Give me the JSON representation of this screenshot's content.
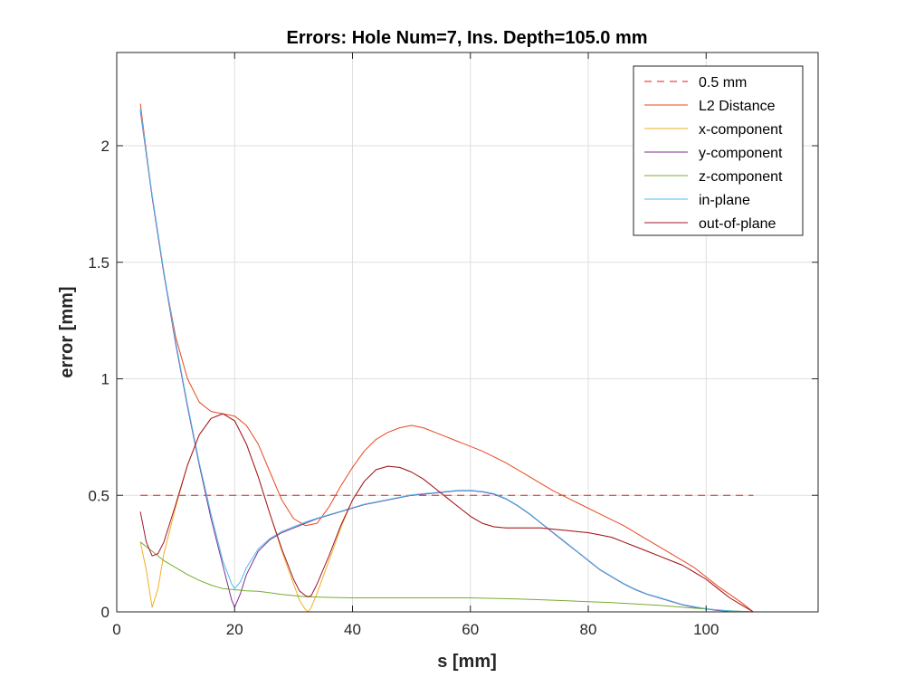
{
  "chart_data": {
    "type": "line",
    "title": "Errors: Hole Num=7, Ins. Depth=105.0 mm",
    "xlabel": "s [mm]",
    "ylabel": "error [mm]",
    "xlim": [
      0,
      119
    ],
    "ylim": [
      0,
      2.4
    ],
    "xticks": [
      0,
      20,
      40,
      60,
      80,
      100
    ],
    "yticks": [
      0,
      0.5,
      1,
      1.5,
      2
    ],
    "xtick_labels": [
      "0",
      "20",
      "40",
      "60",
      "80",
      "100"
    ],
    "ytick_labels": [
      "0",
      "0.5",
      "1",
      "1.5",
      "2"
    ],
    "grid": true,
    "legend_position": "top-right",
    "series": [
      {
        "name": "0.5 mm",
        "color": "#e41a1c",
        "dash": true,
        "x": [
          4,
          108
        ],
        "y": [
          0.5,
          0.5
        ]
      },
      {
        "name": "L2 Distance",
        "color": "#e8471f",
        "x": [
          4,
          6,
          8,
          10,
          12,
          14,
          16,
          18,
          20,
          22,
          24,
          26,
          28,
          30,
          32,
          34,
          36,
          38,
          40,
          42,
          44,
          46,
          48,
          50,
          52,
          54,
          58,
          62,
          66,
          70,
          74,
          78,
          82,
          86,
          90,
          94,
          98,
          102,
          106,
          108
        ],
        "y": [
          2.18,
          1.78,
          1.45,
          1.18,
          1.0,
          0.9,
          0.86,
          0.85,
          0.84,
          0.8,
          0.72,
          0.6,
          0.48,
          0.4,
          0.37,
          0.38,
          0.45,
          0.54,
          0.62,
          0.69,
          0.74,
          0.77,
          0.79,
          0.8,
          0.79,
          0.77,
          0.73,
          0.69,
          0.64,
          0.58,
          0.52,
          0.47,
          0.42,
          0.37,
          0.31,
          0.25,
          0.19,
          0.11,
          0.04,
          0.0
        ]
      },
      {
        "name": "x-component",
        "color": "#edb120",
        "x": [
          4,
          5,
          6,
          7,
          8,
          10,
          12,
          14,
          16,
          18,
          20,
          22,
          24,
          26,
          28,
          30,
          31,
          32,
          32.5,
          33,
          34,
          36,
          38,
          40,
          42,
          44,
          46,
          48,
          50,
          52,
          54,
          56,
          58,
          60,
          62,
          64,
          66,
          68,
          70,
          72,
          74,
          76,
          78,
          80,
          82,
          84,
          86,
          88,
          90,
          92,
          94,
          96,
          98,
          100,
          102,
          104,
          106,
          108
        ],
        "y": [
          0.3,
          0.18,
          0.02,
          0.1,
          0.25,
          0.45,
          0.63,
          0.76,
          0.83,
          0.85,
          0.82,
          0.72,
          0.58,
          0.42,
          0.26,
          0.12,
          0.05,
          0.01,
          0.0,
          0.02,
          0.08,
          0.22,
          0.36,
          0.48,
          0.56,
          0.61,
          0.625,
          0.62,
          0.6,
          0.57,
          0.53,
          0.49,
          0.45,
          0.41,
          0.38,
          0.365,
          0.36,
          0.36,
          0.36,
          0.36,
          0.355,
          0.35,
          0.345,
          0.34,
          0.33,
          0.32,
          0.3,
          0.28,
          0.26,
          0.24,
          0.22,
          0.2,
          0.17,
          0.14,
          0.1,
          0.06,
          0.03,
          0.0
        ]
      },
      {
        "name": "y-component",
        "color": "#7e2f8e",
        "x": [
          4,
          6,
          8,
          10,
          12,
          14,
          16,
          18,
          19.5,
          20,
          21,
          22,
          24,
          26,
          28,
          30,
          32,
          34,
          36,
          38,
          40,
          42,
          44,
          46,
          48,
          50,
          52,
          54,
          56,
          58,
          60,
          62,
          64,
          66,
          68,
          70,
          72,
          74,
          76,
          78,
          80,
          82,
          84,
          86,
          88,
          90,
          92,
          94,
          96,
          98,
          100,
          102,
          104,
          106,
          108
        ],
        "y": [
          2.15,
          1.78,
          1.45,
          1.15,
          0.88,
          0.63,
          0.4,
          0.2,
          0.05,
          0.02,
          0.08,
          0.16,
          0.26,
          0.31,
          0.34,
          0.36,
          0.38,
          0.4,
          0.415,
          0.43,
          0.445,
          0.46,
          0.47,
          0.48,
          0.49,
          0.5,
          0.505,
          0.51,
          0.515,
          0.52,
          0.52,
          0.515,
          0.505,
          0.485,
          0.455,
          0.42,
          0.38,
          0.34,
          0.3,
          0.26,
          0.22,
          0.18,
          0.15,
          0.12,
          0.095,
          0.075,
          0.06,
          0.045,
          0.03,
          0.02,
          0.012,
          0.006,
          0.003,
          0.001,
          0.0
        ]
      },
      {
        "name": "z-component",
        "color": "#77ac30",
        "x": [
          4,
          6,
          8,
          10,
          12,
          14,
          16,
          18,
          20,
          22,
          24,
          26,
          28,
          30,
          32,
          36,
          40,
          44,
          48,
          52,
          56,
          60,
          64,
          68,
          72,
          76,
          80,
          84,
          88,
          92,
          96,
          100,
          104,
          108
        ],
        "y": [
          0.3,
          0.26,
          0.22,
          0.19,
          0.16,
          0.135,
          0.115,
          0.1,
          0.095,
          0.09,
          0.088,
          0.082,
          0.075,
          0.07,
          0.065,
          0.062,
          0.06,
          0.06,
          0.06,
          0.06,
          0.06,
          0.06,
          0.058,
          0.055,
          0.052,
          0.048,
          0.044,
          0.04,
          0.034,
          0.028,
          0.02,
          0.012,
          0.005,
          0.0
        ]
      },
      {
        "name": "in-plane",
        "color": "#4dbeee",
        "x": [
          4,
          6,
          8,
          10,
          12,
          14,
          16,
          18,
          19.5,
          20,
          21,
          22,
          24,
          26,
          28,
          30,
          32,
          34,
          36,
          38,
          40,
          42,
          44,
          46,
          48,
          50,
          52,
          54,
          56,
          58,
          60,
          62,
          64,
          66,
          68,
          70,
          72,
          74,
          76,
          78,
          80,
          82,
          84,
          86,
          88,
          90,
          92,
          94,
          96,
          98,
          100,
          102,
          104,
          106,
          108
        ],
        "y": [
          2.16,
          1.79,
          1.46,
          1.16,
          0.89,
          0.64,
          0.42,
          0.22,
          0.12,
          0.1,
          0.13,
          0.19,
          0.27,
          0.315,
          0.345,
          0.365,
          0.385,
          0.402,
          0.417,
          0.432,
          0.447,
          0.462,
          0.472,
          0.482,
          0.492,
          0.502,
          0.507,
          0.512,
          0.517,
          0.522,
          0.522,
          0.517,
          0.507,
          0.487,
          0.457,
          0.422,
          0.382,
          0.342,
          0.302,
          0.262,
          0.222,
          0.182,
          0.152,
          0.122,
          0.097,
          0.077,
          0.062,
          0.047,
          0.032,
          0.022,
          0.014,
          0.008,
          0.004,
          0.002,
          0.0
        ]
      },
      {
        "name": "out-of-plane",
        "color": "#a2142f",
        "x": [
          4,
          5,
          6,
          7,
          8,
          10,
          12,
          14,
          16,
          18,
          20,
          22,
          24,
          26,
          28,
          30,
          31,
          32,
          32.5,
          33,
          34,
          36,
          38,
          40,
          42,
          44,
          46,
          48,
          50,
          52,
          54,
          56,
          58,
          60,
          62,
          64,
          66,
          68,
          70,
          72,
          74,
          76,
          78,
          80,
          82,
          84,
          86,
          88,
          90,
          92,
          94,
          96,
          98,
          100,
          102,
          104,
          106,
          108
        ],
        "y": [
          0.43,
          0.3,
          0.24,
          0.25,
          0.3,
          0.46,
          0.63,
          0.76,
          0.83,
          0.85,
          0.82,
          0.72,
          0.58,
          0.42,
          0.27,
          0.14,
          0.09,
          0.07,
          0.065,
          0.07,
          0.12,
          0.24,
          0.37,
          0.48,
          0.56,
          0.61,
          0.625,
          0.62,
          0.6,
          0.57,
          0.53,
          0.49,
          0.45,
          0.41,
          0.38,
          0.365,
          0.36,
          0.36,
          0.36,
          0.36,
          0.355,
          0.35,
          0.345,
          0.34,
          0.33,
          0.32,
          0.3,
          0.28,
          0.26,
          0.24,
          0.22,
          0.2,
          0.17,
          0.14,
          0.1,
          0.06,
          0.03,
          0.0
        ]
      }
    ]
  }
}
